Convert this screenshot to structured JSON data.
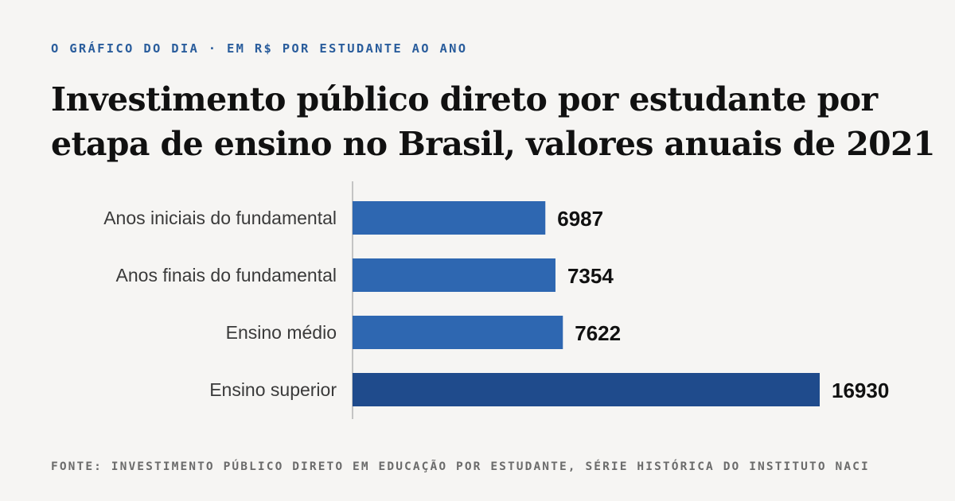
{
  "header": {
    "kicker": "O GRÁFICO DO DIA · EM R$ POR ESTUDANTE AO ANO",
    "title_line1": "Investimento público direto por estudante por",
    "title_line2": "etapa de ensino no Brasil, valores anuais de 2021"
  },
  "footer": {
    "source": "FONTE: INVESTIMENTO PÚBLICO DIRETO EM EDUCAÇÃO POR ESTUDANTE, SÉRIE HISTÓRICA DO INSTITUTO NACI"
  },
  "colors": {
    "bar": "#2e67b1",
    "bar_highlight": "#1f4b8c",
    "axis": "#c4c4c4",
    "category_text": "#3a3a3a",
    "value_text": "#111111"
  },
  "chart_data": {
    "type": "bar",
    "orientation": "horizontal",
    "categories": [
      "Anos iniciais do fundamental",
      "Anos finais do fundamental",
      "Ensino médio",
      "Ensino superior"
    ],
    "values": [
      6987,
      7354,
      7622,
      16930
    ],
    "highlight_index": 3,
    "xlim": [
      0,
      16930
    ],
    "grid": false
  }
}
